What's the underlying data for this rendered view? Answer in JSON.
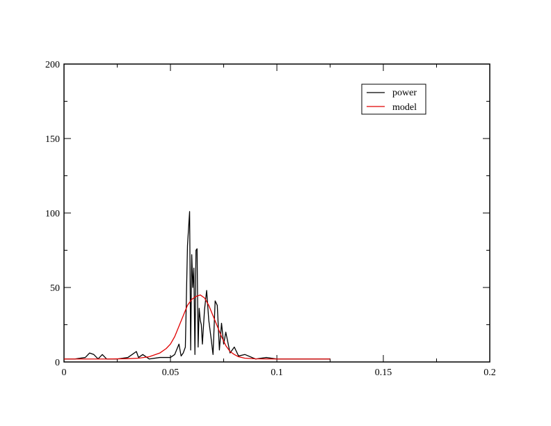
{
  "chart_data": {
    "type": "line",
    "title": "",
    "xlabel": "",
    "ylabel": "",
    "xlim": [
      0,
      0.2
    ],
    "ylim": [
      0,
      200
    ],
    "x_ticks": [
      0,
      0.05,
      0.1,
      0.15,
      0.2
    ],
    "x_tick_labels": [
      "0",
      "0.05",
      "0.1",
      "0.15",
      "0.2"
    ],
    "y_ticks": [
      0,
      50,
      100,
      150,
      200
    ],
    "y_tick_labels": [
      "0",
      "50",
      "100",
      "150",
      "200"
    ],
    "grid": false,
    "legend_position": "top-right",
    "series": [
      {
        "name": "power",
        "color": "#000000",
        "x": [
          0,
          0.005,
          0.01,
          0.012,
          0.014,
          0.016,
          0.018,
          0.02,
          0.025,
          0.03,
          0.032,
          0.034,
          0.035,
          0.037,
          0.04,
          0.045,
          0.05,
          0.052,
          0.054,
          0.055,
          0.056,
          0.057,
          0.058,
          0.059,
          0.0595,
          0.06,
          0.0605,
          0.061,
          0.0615,
          0.062,
          0.0625,
          0.063,
          0.0635,
          0.064,
          0.0645,
          0.065,
          0.066,
          0.067,
          0.068,
          0.069,
          0.07,
          0.071,
          0.072,
          0.073,
          0.074,
          0.075,
          0.076,
          0.078,
          0.08,
          0.082,
          0.085,
          0.09,
          0.095,
          0.1,
          0.11,
          0.12,
          0.125
        ],
        "y": [
          2,
          2,
          3,
          6,
          5,
          2,
          5,
          2,
          2,
          3,
          5,
          7,
          3,
          5,
          2,
          3,
          3,
          5,
          12,
          4,
          6,
          10,
          78,
          101,
          8,
          72,
          50,
          63,
          5,
          75,
          76,
          10,
          36,
          28,
          25,
          12,
          35,
          48,
          28,
          17,
          5,
          41,
          38,
          8,
          26,
          12,
          20,
          6,
          10,
          4,
          5,
          2,
          3,
          2,
          2,
          2,
          2
        ]
      },
      {
        "name": "model",
        "color": "#e00000",
        "x": [
          0,
          0.02,
          0.03,
          0.035,
          0.04,
          0.045,
          0.048,
          0.05,
          0.052,
          0.054,
          0.056,
          0.058,
          0.06,
          0.062,
          0.064,
          0.066,
          0.068,
          0.07,
          0.072,
          0.074,
          0.076,
          0.078,
          0.08,
          0.082,
          0.085,
          0.09,
          0.1,
          0.11,
          0.125
        ],
        "y": [
          2,
          2,
          2.2,
          2.5,
          3.5,
          6,
          9,
          12,
          17,
          24,
          31,
          38,
          42,
          44,
          45,
          43,
          38,
          31,
          24,
          17,
          11,
          7,
          5,
          3.5,
          2.5,
          2.1,
          2,
          2,
          2
        ]
      }
    ]
  }
}
